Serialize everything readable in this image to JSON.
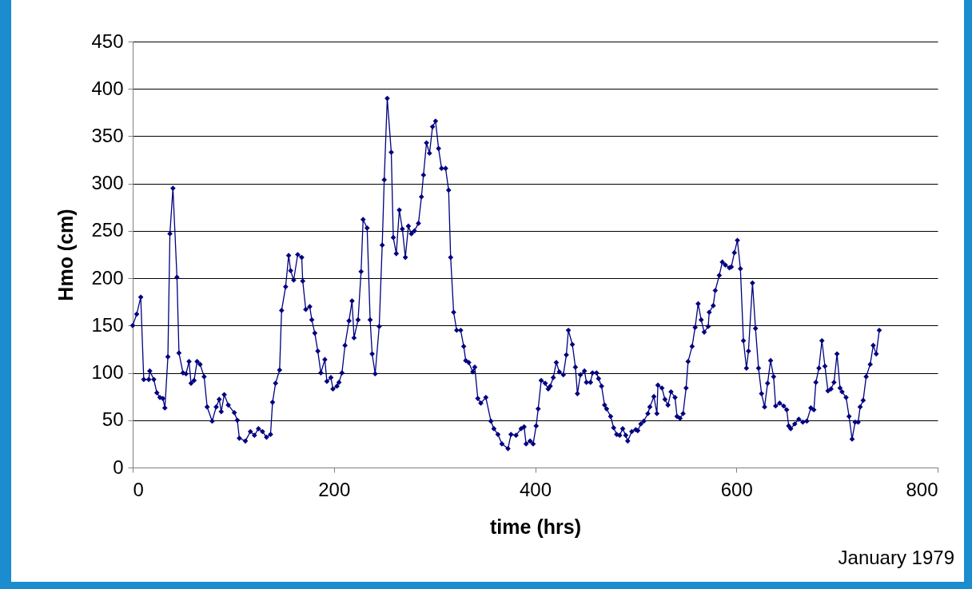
{
  "chart_data": {
    "type": "line",
    "xlabel": "time (hrs)",
    "ylabel": "Hmo (cm)",
    "annotations": [
      "January 1979"
    ],
    "xlim": [
      0,
      800
    ],
    "xticks": [
      0,
      200,
      400,
      600,
      800
    ],
    "ylim": [
      0,
      450
    ],
    "yticks": [
      0,
      50,
      100,
      150,
      200,
      250,
      300,
      350,
      400,
      450
    ],
    "grid": "y",
    "marker": "diamond",
    "line_style": "solid",
    "series": [
      {
        "color": "#000080",
        "x": [
          0,
          4,
          8,
          11,
          16,
          17,
          21,
          24,
          27,
          30,
          32,
          35,
          37,
          40,
          44,
          46,
          50,
          53,
          56,
          58,
          61,
          64,
          67,
          71,
          74,
          79,
          83,
          86,
          88,
          91,
          95,
          101,
          104,
          106,
          112,
          117,
          121,
          125,
          129,
          133,
          137,
          139,
          142,
          146,
          148,
          152,
          155,
          157,
          160,
          164,
          168,
          169,
          172,
          176,
          178,
          181,
          184,
          187,
          191,
          193,
          197,
          199,
          203,
          205,
          208,
          211,
          215,
          218,
          220,
          224,
          227,
          229,
          233,
          236,
          238,
          241,
          245,
          248,
          250,
          253,
          257,
          259,
          262,
          265,
          268,
          271,
          274,
          277,
          280,
          284,
          287,
          289,
          292,
          295,
          298,
          301,
          304,
          307,
          311,
          314,
          316,
          319,
          322,
          326,
          329,
          331,
          334,
          338,
          340,
          343,
          346,
          351,
          356,
          359,
          363,
          367,
          373,
          376,
          381,
          386,
          389,
          391,
          395,
          398,
          401,
          403,
          406,
          410,
          413,
          415,
          418,
          421,
          424,
          428,
          431,
          433,
          437,
          440,
          442,
          445,
          449,
          451,
          455,
          457,
          461,
          463,
          466,
          469,
          471,
          475,
          478,
          481,
          484,
          487,
          490,
          492,
          496,
          500,
          502,
          505,
          508,
          512,
          514,
          518,
          521,
          522,
          526,
          529,
          532,
          535,
          539,
          541,
          544,
          547,
          550,
          552,
          556,
          559,
          562,
          565,
          568,
          572,
          573,
          577,
          579,
          583,
          586,
          589,
          593,
          595,
          598,
          601,
          604,
          607,
          610,
          612,
          616,
          619,
          622,
          625,
          628,
          631,
          634,
          637,
          639,
          643,
          647,
          650,
          652,
          654,
          658,
          662,
          666,
          670,
          674,
          677,
          679,
          682,
          685,
          688,
          691,
          694,
          697,
          700,
          703,
          705,
          709,
          712,
          715,
          718,
          721,
          723,
          726,
          729,
          733,
          736,
          739,
          742
        ],
        "values": [
          150,
          162,
          180,
          93,
          93,
          102,
          93,
          79,
          74,
          73,
          63,
          117,
          247,
          295,
          201,
          121,
          100,
          99,
          112,
          89,
          92,
          112,
          109,
          96,
          64,
          49,
          64,
          72,
          59,
          77,
          66,
          58,
          50,
          31,
          28,
          38,
          34,
          41,
          38,
          32,
          35,
          69,
          89,
          103,
          166,
          191,
          224,
          208,
          198,
          225,
          222,
          197,
          167,
          170,
          156,
          142,
          123,
          100,
          114,
          91,
          95,
          83,
          86,
          90,
          100,
          129,
          155,
          176,
          137,
          156,
          207,
          262,
          253,
          156,
          120,
          99,
          149,
          235,
          304,
          390,
          333,
          243,
          226,
          272,
          252,
          222,
          255,
          247,
          250,
          258,
          286,
          309,
          343,
          332,
          360,
          366,
          337,
          316,
          316,
          293,
          222,
          164,
          145,
          145,
          128,
          113,
          111,
          101,
          106,
          73,
          68,
          74,
          49,
          41,
          35,
          25,
          20,
          35,
          34,
          41,
          43,
          25,
          28,
          25,
          44,
          62,
          92,
          89,
          83,
          86,
          95,
          111,
          101,
          98,
          119,
          145,
          130,
          106,
          78,
          98,
          102,
          90,
          90,
          100,
          100,
          94,
          86,
          66,
          62,
          54,
          42,
          35,
          34,
          41,
          34,
          28,
          38,
          40,
          39,
          46,
          49,
          57,
          64,
          75,
          57,
          87,
          84,
          72,
          66,
          80,
          74,
          54,
          52,
          57,
          84,
          112,
          128,
          148,
          173,
          156,
          143,
          149,
          164,
          171,
          187,
          203,
          217,
          214,
          211,
          212,
          227,
          240,
          210,
          134,
          105,
          123,
          195,
          147,
          105,
          78,
          64,
          89,
          113,
          96,
          65,
          68,
          65,
          61,
          44,
          41,
          46,
          51,
          48,
          49,
          63,
          61,
          90,
          105,
          134,
          107,
          81,
          83,
          90,
          120,
          84,
          80,
          74,
          54,
          30,
          48,
          48,
          64,
          71,
          96,
          109,
          129,
          120,
          145
        ]
      }
    ]
  }
}
